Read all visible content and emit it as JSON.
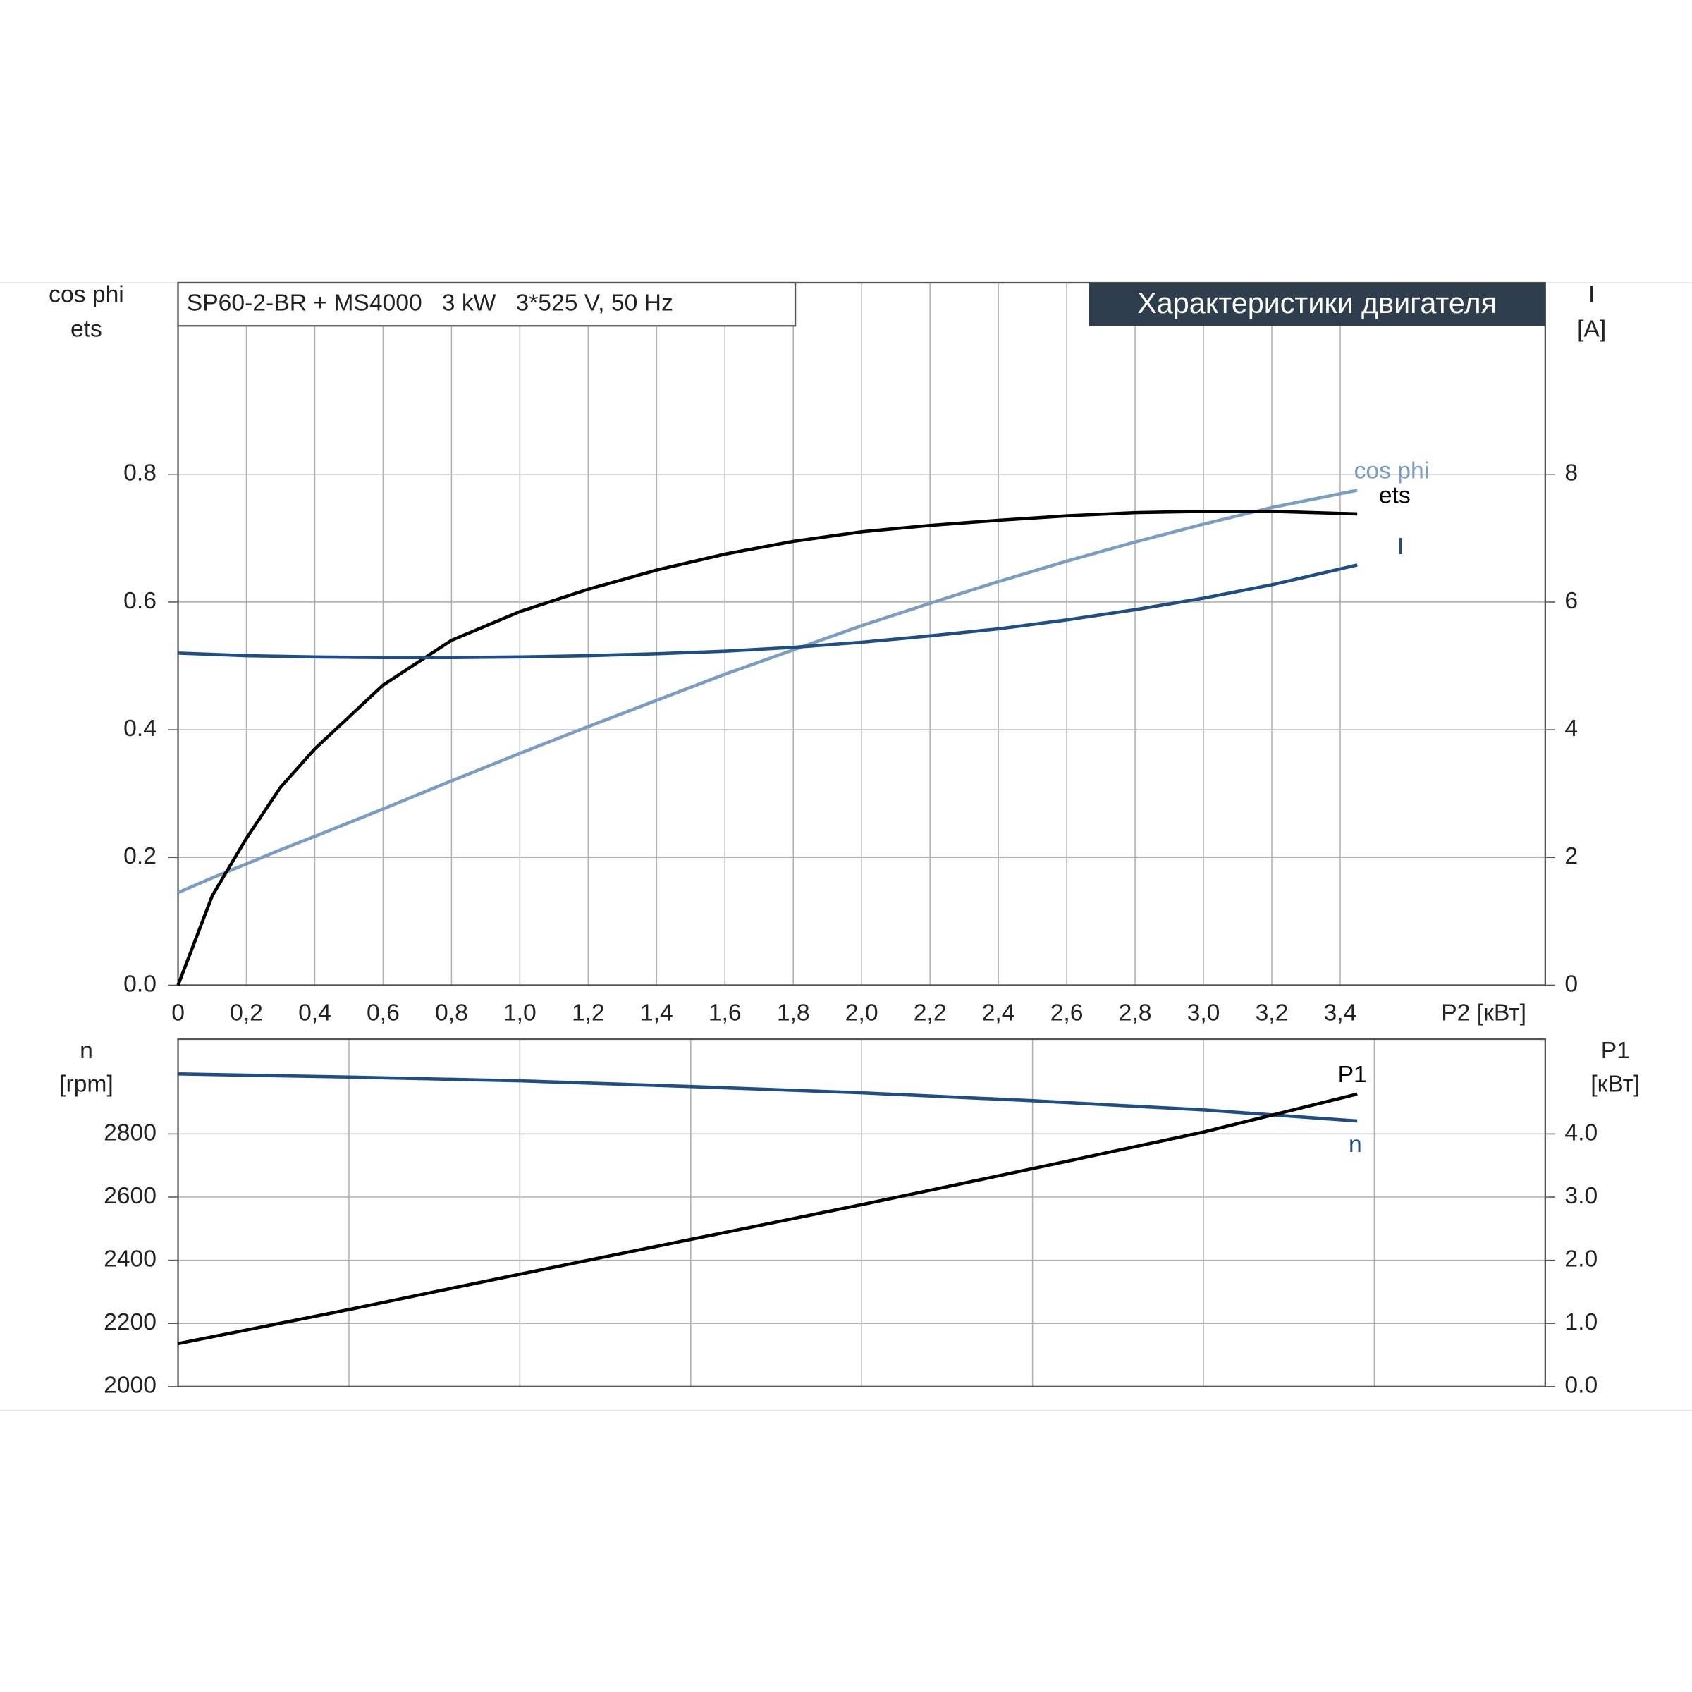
{
  "chart_data": [
    {
      "type": "line",
      "title": "SP60-2-BR + MS4000   3 kW   3*525 V, 50 Hz",
      "subtitle": "Характеристики двигателя",
      "xlabel": "P2 [кВт]",
      "ylabel": [
        "cos phi",
        "ets"
      ],
      "y2label": [
        "I",
        "[A]"
      ],
      "xlim": [
        0,
        4.0
      ],
      "xticks": [
        0,
        {
          "value": 0.2,
          "label": "0,2"
        },
        {
          "value": 0.4,
          "label": "0,4"
        },
        {
          "value": 0.6,
          "label": "0,6"
        },
        {
          "value": 0.8,
          "label": "0,8"
        },
        {
          "value": 1.0,
          "label": "1,0"
        },
        {
          "value": 1.2,
          "label": "1,2"
        },
        {
          "value": 1.4,
          "label": "1,4"
        },
        {
          "value": 1.6,
          "label": "1,6"
        },
        {
          "value": 1.8,
          "label": "1,8"
        },
        {
          "value": 2.0,
          "label": "2,0"
        },
        {
          "value": 2.2,
          "label": "2,2"
        },
        {
          "value": 2.4,
          "label": "2,4"
        },
        {
          "value": 2.6,
          "label": "2,6"
        },
        {
          "value": 2.8,
          "label": "2,8"
        },
        {
          "value": 3.0,
          "label": "3,0"
        },
        {
          "value": 3.2,
          "label": "3,2"
        },
        {
          "value": 3.4,
          "label": "3,4"
        }
      ],
      "ylim": [
        0,
        1.1
      ],
      "yticks": [
        {
          "value": 0,
          "label": "0.0"
        },
        0.2,
        0.4,
        0.6,
        0.8
      ],
      "y2lim": [
        0,
        11
      ],
      "y2ticks": [
        0,
        2,
        4,
        6,
        8
      ],
      "grid": true,
      "x": [
        0,
        0.1,
        0.2,
        0.3,
        0.4,
        0.6,
        0.8,
        1.0,
        1.2,
        1.4,
        1.6,
        1.8,
        2.0,
        2.2,
        2.4,
        2.6,
        2.8,
        3.0,
        3.2,
        3.45
      ],
      "series": [
        {
          "name": "cos phi",
          "color": "#7b9dc2",
          "values": [
            0.145,
            0.168,
            0.19,
            0.212,
            0.233,
            0.276,
            0.32,
            0.363,
            0.405,
            0.446,
            0.487,
            0.525,
            0.563,
            0.598,
            0.632,
            0.664,
            0.694,
            0.722,
            0.748,
            0.775
          ]
        },
        {
          "name": "ets",
          "color": "#000000",
          "values": [
            0,
            0.14,
            0.23,
            0.31,
            0.37,
            0.47,
            0.54,
            0.585,
            0.62,
            0.65,
            0.675,
            0.695,
            0.71,
            0.72,
            0.728,
            0.735,
            0.74,
            0.742,
            0.742,
            0.738
          ]
        },
        {
          "name": "I",
          "color": "#1f4e85",
          "axis": "y2",
          "values": [
            5.2,
            5.18,
            5.16,
            5.15,
            5.14,
            5.13,
            5.13,
            5.14,
            5.16,
            5.19,
            5.23,
            5.29,
            5.37,
            5.47,
            5.58,
            5.72,
            5.88,
            6.06,
            6.27,
            6.58
          ]
        }
      ]
    },
    {
      "type": "line",
      "ylabel": [
        "n",
        "[rpm]"
      ],
      "y2label": [
        "P1",
        "[кВт]"
      ],
      "xlim": [
        0,
        4.0
      ],
      "xticks": [
        0,
        0.5,
        1.0,
        1.5,
        2.0,
        2.5,
        3.0,
        3.5
      ],
      "ylim": [
        2000,
        3100
      ],
      "yticks": [
        2000,
        2200,
        2400,
        2600,
        2800
      ],
      "y2lim": [
        0,
        5.5
      ],
      "y2ticks": [
        {
          "value": 0,
          "label": "0.0"
        },
        {
          "value": 1,
          "label": "1.0"
        },
        {
          "value": 2,
          "label": "2.0"
        },
        {
          "value": 3,
          "label": "3.0"
        },
        {
          "value": 4,
          "label": "4.0"
        }
      ],
      "grid": true,
      "x": [
        0,
        0.5,
        1.0,
        1.5,
        2.0,
        2.5,
        3.0,
        3.45
      ],
      "series": [
        {
          "name": "n",
          "color": "#1f4e85",
          "values": [
            2990,
            2980,
            2968,
            2950,
            2930,
            2905,
            2876,
            2841
          ]
        },
        {
          "name": "P1",
          "color": "#000000",
          "axis": "y2",
          "values": [
            0.68,
            1.22,
            1.78,
            2.33,
            2.88,
            3.45,
            4.03,
            4.63
          ]
        }
      ]
    }
  ]
}
